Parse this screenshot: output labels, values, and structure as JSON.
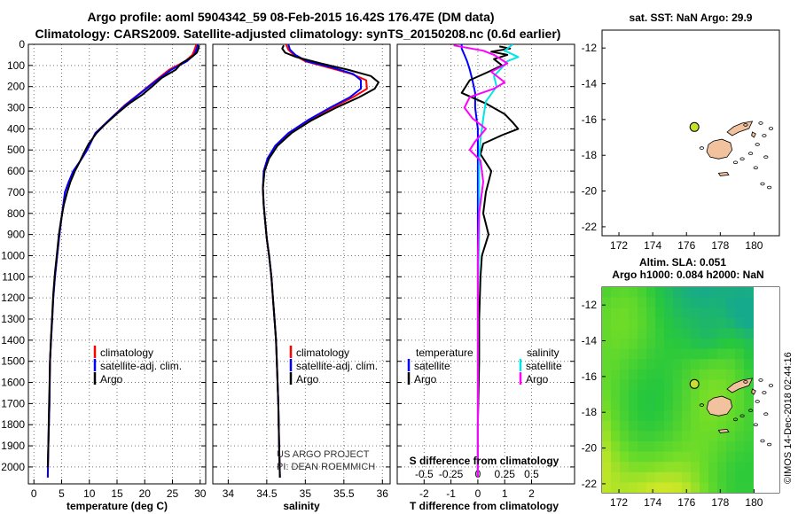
{
  "header": {
    "title_line1": "Argo profile: aoml 5904342_59 08-Feb-2015 16.42S 176.47E (DM data)",
    "title_line2": "Climatology: CARS2009. Satellite-adjusted climatology: synTS_20150208.nc (0.6d earlier)"
  },
  "credit": {
    "project": "US ARGO PROJECT",
    "pi": "PI: DEAN ROEMMICH"
  },
  "watermark": "©IMOS 14-Dec-2018 02:44:16",
  "colors": {
    "climatology": "#ff0000",
    "satellite": "#0000ff",
    "argo": "#000000",
    "sat_salinity": "#00e5e5",
    "argo_salinity": "#ff00ff",
    "land": "#f2c29e",
    "marker": "#c8e02a"
  },
  "chart_data": [
    {
      "type": "line",
      "id": "temperature",
      "xlabel": "temperature (deg C)",
      "ylabel": "",
      "xlim": [
        -1,
        31
      ],
      "ylim": [
        2080,
        0
      ],
      "xticks": [
        0,
        5,
        10,
        15,
        20,
        25,
        30
      ],
      "yticks": [
        0,
        100,
        200,
        300,
        400,
        500,
        600,
        700,
        800,
        900,
        1000,
        1100,
        1200,
        1300,
        1400,
        1500,
        1600,
        1700,
        1800,
        1900,
        2000
      ],
      "legend": [
        "climatology",
        "satellite-adj. clim.",
        "Argo"
      ],
      "series": [
        {
          "name": "climatology",
          "color": "#ff0000",
          "x": [
            29.3,
            29.0,
            28.6,
            27.3,
            24.4,
            22.0,
            19.2,
            16.3,
            13.9,
            11.1,
            9.6,
            8.4,
            7.1,
            6.3,
            5.6,
            5.1,
            4.6,
            4.2,
            3.8,
            3.5,
            3.3,
            3.1,
            2.9,
            2.8,
            2.6,
            2.5
          ],
          "y": [
            0,
            25,
            50,
            80,
            120,
            170,
            230,
            290,
            350,
            420,
            500,
            550,
            600,
            650,
            700,
            800,
            900,
            1000,
            1100,
            1200,
            1300,
            1400,
            1500,
            1700,
            1900,
            2050
          ]
        },
        {
          "name": "satellite-adj. clim.",
          "color": "#0000ff",
          "x": [
            29.6,
            29.3,
            28.9,
            27.6,
            24.8,
            22.2,
            19.3,
            16.4,
            13.9,
            11.1,
            9.6,
            8.4,
            7.1,
            6.3,
            5.6,
            5.1,
            4.6,
            4.2,
            3.8,
            3.5,
            3.3,
            3.1,
            2.9,
            2.8,
            2.6,
            2.5
          ],
          "y": [
            0,
            25,
            50,
            80,
            120,
            170,
            230,
            290,
            350,
            420,
            500,
            550,
            600,
            650,
            700,
            800,
            900,
            1000,
            1100,
            1200,
            1300,
            1400,
            1500,
            1700,
            1900,
            2050
          ]
        },
        {
          "name": "Argo",
          "color": "#000000",
          "x": [
            29.8,
            29.7,
            29.4,
            28.5,
            26.6,
            25.6,
            23.0,
            21.3,
            19.5,
            17.2,
            14.9,
            12.8,
            11.3,
            9.9,
            8.9,
            8.2,
            7.4,
            6.6,
            6.0,
            5.4,
            4.9,
            4.5,
            4.2,
            3.8,
            3.5,
            3.3,
            3.1,
            2.9,
            2.8,
            2.7,
            2.6,
            2.5
          ],
          "y": [
            5,
            20,
            40,
            60,
            90,
            120,
            160,
            200,
            240,
            280,
            330,
            380,
            420,
            470,
            520,
            560,
            600,
            650,
            700,
            760,
            830,
            900,
            980,
            1080,
            1180,
            1280,
            1380,
            1500,
            1620,
            1750,
            1900,
            2000
          ]
        }
      ]
    },
    {
      "type": "line",
      "id": "salinity",
      "xlabel": "salinity",
      "ylabel": "",
      "xlim": [
        33.8,
        36.1
      ],
      "ylim": [
        2080,
        0
      ],
      "xticks": [
        34,
        34.5,
        35,
        35.5,
        36
      ],
      "legend": [
        "climatology",
        "satellite-adj. clim.",
        "Argo"
      ],
      "series": [
        {
          "name": "climatology",
          "color": "#ff0000",
          "x": [
            34.75,
            34.78,
            34.85,
            35.0,
            35.3,
            35.6,
            35.79,
            35.8,
            35.62,
            35.35,
            35.05,
            34.8,
            34.62,
            34.52,
            34.47,
            34.45,
            34.46,
            34.48,
            34.5,
            34.53,
            34.56,
            34.58,
            34.6,
            34.62,
            34.63,
            34.65,
            34.66,
            34.67
          ],
          "y": [
            0,
            25,
            50,
            80,
            110,
            140,
            170,
            210,
            250,
            300,
            360,
            420,
            480,
            540,
            600,
            680,
            760,
            840,
            920,
            1000,
            1100,
            1200,
            1300,
            1400,
            1500,
            1700,
            1900,
            2050
          ]
        },
        {
          "name": "satellite-adj. clim.",
          "color": "#0000ff",
          "x": [
            34.78,
            34.8,
            34.87,
            35.02,
            35.35,
            35.62,
            35.72,
            35.72,
            35.58,
            35.32,
            35.03,
            34.78,
            34.61,
            34.51,
            34.46,
            34.45,
            34.46,
            34.48,
            34.5,
            34.53,
            34.56,
            34.58,
            34.6,
            34.62,
            34.63,
            34.65,
            34.66,
            34.67
          ],
          "y": [
            0,
            25,
            50,
            80,
            110,
            140,
            170,
            210,
            250,
            300,
            360,
            420,
            480,
            540,
            600,
            680,
            760,
            840,
            920,
            1000,
            1100,
            1200,
            1300,
            1400,
            1500,
            1700,
            1900,
            2050
          ]
        },
        {
          "name": "Argo",
          "color": "#000000",
          "x": [
            34.72,
            34.7,
            34.74,
            34.88,
            35.2,
            35.55,
            35.85,
            35.95,
            35.9,
            35.7,
            35.4,
            35.08,
            34.82,
            34.64,
            34.53,
            34.47,
            34.45,
            34.46,
            34.48,
            34.5,
            34.53,
            34.56,
            34.58,
            34.6,
            34.62,
            34.63,
            34.65,
            34.66,
            34.67
          ],
          "y": [
            5,
            20,
            40,
            60,
            90,
            120,
            150,
            180,
            210,
            250,
            300,
            360,
            420,
            480,
            540,
            600,
            680,
            760,
            840,
            920,
            1000,
            1100,
            1200,
            1300,
            1400,
            1500,
            1700,
            1900,
            2050
          ]
        }
      ]
    },
    {
      "type": "line",
      "id": "difference",
      "xlabel": "T difference from climatology",
      "xlabel2": "S difference from climatology",
      "xlim": [
        -3,
        3.6
      ],
      "ylim": [
        2080,
        0
      ],
      "xticks": [
        -2,
        -1,
        0,
        1,
        2
      ],
      "xtick_labels": [
        "-2",
        "-1",
        "0",
        "1",
        "2"
      ],
      "xticks2": [
        -2,
        -1,
        0,
        1,
        2
      ],
      "xtick_labels2": [
        "-0.5",
        "-0.25",
        "0",
        "0.25",
        "0.5"
      ],
      "legend_left_title": "temperature",
      "legend_right_title": "salinity",
      "legend_left": [
        "satellite",
        "Argo"
      ],
      "legend_right": [
        "satellite",
        "Argo"
      ],
      "series": [
        {
          "name": "satellite (temperature)",
          "color": "#0000ff",
          "x": [
            -0.6,
            -0.6,
            -0.5,
            -0.4,
            -0.3,
            -0.2,
            -0.1,
            -0.1,
            0,
            0,
            0,
            0,
            0,
            0,
            0,
            0
          ],
          "y": [
            0,
            20,
            50,
            80,
            120,
            170,
            230,
            300,
            400,
            500,
            600,
            800,
            1000,
            1400,
            1800,
            2050
          ]
        },
        {
          "name": "Argo (temperature)",
          "color": "#000000",
          "x": [
            0.8,
            1.2,
            0.5,
            1.1,
            0.6,
            0.9,
            0.4,
            -0.3,
            -0.6,
            0.3,
            1.0,
            1.3,
            1.5,
            0.9,
            0.2,
            0.1,
            0.5,
            0.3,
            0.2,
            0.4,
            0.15,
            0.1,
            0.05,
            0.05,
            0,
            0
          ],
          "y": [
            10,
            20,
            35,
            50,
            70,
            100,
            130,
            170,
            230,
            280,
            330,
            370,
            400,
            430,
            470,
            520,
            600,
            700,
            800,
            900,
            1000,
            1100,
            1300,
            1500,
            1800,
            2050
          ]
        },
        {
          "name": "satellite (salinity)",
          "color": "#00e5e5",
          "x": [
            1.3,
            1.0,
            1.5,
            1.1,
            0.9,
            0.6,
            0.7,
            0.3,
            0.2,
            0.1,
            0.05,
            0.05,
            0.05,
            0,
            0,
            0
          ],
          "y": [
            0,
            30,
            60,
            80,
            110,
            150,
            200,
            270,
            350,
            450,
            550,
            700,
            900,
            1200,
            1600,
            2050
          ]
        },
        {
          "name": "Argo (salinity)",
          "color": "#ff00ff",
          "x": [
            -0.9,
            0.2,
            0.6,
            1.1,
            0.5,
            1.0,
            0.6,
            -0.3,
            -0.5,
            -0.2,
            0.3,
            -0.1,
            -0.3,
            0.1,
            0.2,
            0.05,
            0,
            0
          ],
          "y": [
            5,
            30,
            50,
            90,
            130,
            180,
            210,
            250,
            300,
            350,
            400,
            460,
            500,
            550,
            650,
            800,
            1000,
            2050
          ]
        }
      ]
    },
    {
      "type": "scatter",
      "id": "sst_map",
      "title": "sat. SST: NaN Argo: 29.9",
      "xlim": [
        171,
        181.5
      ],
      "ylim": [
        -22.5,
        -11
      ],
      "xticks": [
        172,
        174,
        176,
        178,
        180
      ],
      "yticks": [
        -12,
        -14,
        -16,
        -18,
        -20,
        -22
      ],
      "ytick_labels": [
        "-12",
        "-14",
        "-16",
        "-18",
        "-20",
        "-22"
      ],
      "argo_position": {
        "lon": 176.47,
        "lat": -16.42
      }
    },
    {
      "type": "heatmap",
      "id": "sla_map",
      "title_line1": "Altim. SLA: 0.051",
      "title_line2": "Argo h1000: 0.084 h2000: NaN",
      "xlim": [
        171,
        181.5
      ],
      "ylim": [
        -22.5,
        -11
      ],
      "xticks": [
        172,
        174,
        176,
        178,
        180
      ],
      "yticks": [
        -12,
        -14,
        -16,
        -18,
        -20,
        -22
      ],
      "ytick_labels": [
        "-12",
        "-14",
        "-16",
        "-18",
        "-20",
        "-22"
      ],
      "argo_position": {
        "lon": 176.47,
        "lat": -16.42
      }
    }
  ]
}
